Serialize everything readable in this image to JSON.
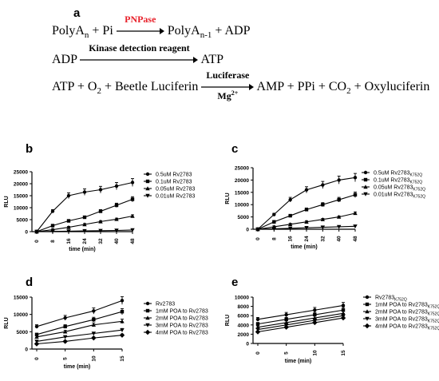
{
  "panel_labels": {
    "a": "a",
    "b": "b",
    "c": "c",
    "d": "d",
    "e": "e"
  },
  "reactions": [
    {
      "left": "PolyA",
      "left_sub": "n",
      "left_rest": " + Pi",
      "enzyme": "PNPase",
      "enzyme_color": "#e8202a",
      "right": "PolyA",
      "right_sub": "n-1",
      "right_rest": " + ADP"
    },
    {
      "left": "ADP",
      "enzyme": "Kinase detection reagent",
      "right": "ATP"
    },
    {
      "left": "ATP + O",
      "left_sub": "2",
      "left_rest": " + Beetle Luciferin",
      "enzyme": "Luciferase",
      "cofactor": "Mg",
      "cofactor_sup": "2+",
      "right": "AMP + PPi + CO",
      "right_sub": "2",
      "right_rest": " + Oxyluciferin"
    }
  ],
  "chart_data": [
    {
      "panel": "b",
      "type": "line",
      "xlabel": "time (min)",
      "ylabel": "RLU",
      "x": [
        0,
        8,
        16,
        24,
        32,
        40,
        48
      ],
      "ylim": [
        0,
        25000
      ],
      "yticks": [
        0,
        5000,
        10000,
        15000,
        20000,
        25000
      ],
      "series": [
        {
          "name": "0.5uM Rv2783",
          "marker": "circle",
          "values": [
            0,
            8500,
            15000,
            16500,
            17500,
            19000,
            20500
          ]
        },
        {
          "name": "0.1uM Rv2783",
          "marker": "square",
          "values": [
            0,
            2500,
            4500,
            6000,
            8500,
            11000,
            13500
          ]
        },
        {
          "name": "0.05uM Rv2783",
          "marker": "triangle-up",
          "values": [
            0,
            800,
            1800,
            3000,
            4200,
            5200,
            6500
          ]
        },
        {
          "name": "0.01uM Rv2783",
          "marker": "triangle-down",
          "values": [
            0,
            100,
            200,
            300,
            400,
            500,
            700
          ]
        }
      ]
    },
    {
      "panel": "c",
      "type": "line",
      "xlabel": "time (min)",
      "ylabel": "RLU",
      "x": [
        0,
        8,
        16,
        24,
        32,
        40,
        48
      ],
      "ylim": [
        0,
        25000
      ],
      "yticks": [
        0,
        5000,
        10000,
        15000,
        20000,
        25000
      ],
      "series": [
        {
          "name": "0.5uM Rv2783",
          "name_sub": "K752Q",
          "marker": "circle",
          "values": [
            0,
            6000,
            12000,
            16000,
            18000,
            20000,
            21000
          ]
        },
        {
          "name": "0.1uM Rv2783",
          "name_sub": "K752Q",
          "marker": "square",
          "values": [
            0,
            3000,
            5500,
            8000,
            10000,
            12000,
            14000
          ]
        },
        {
          "name": "0.05uM Rv2783",
          "name_sub": "K752Q",
          "marker": "triangle-up",
          "values": [
            0,
            1000,
            2000,
            3000,
            4000,
            5000,
            6500
          ]
        },
        {
          "name": "0.01uM Rv2783",
          "name_sub": "K752Q",
          "marker": "triangle-down",
          "values": [
            0,
            200,
            400,
            600,
            800,
            1000,
            1200
          ]
        }
      ]
    },
    {
      "panel": "d",
      "type": "line",
      "xlabel": "time (min)",
      "ylabel": "RLU",
      "x": [
        0,
        5,
        10,
        15
      ],
      "ylim": [
        0,
        15000
      ],
      "yticks": [
        0,
        5000,
        10000,
        15000
      ],
      "series": [
        {
          "name": "Rv2783",
          "marker": "circle",
          "values": [
            6500,
            9000,
            11000,
            14000
          ]
        },
        {
          "name": "1mM POA to Rv2783",
          "marker": "square",
          "values": [
            4200,
            6500,
            8500,
            10800
          ]
        },
        {
          "name": "2mM POA to Rv2783",
          "marker": "triangle-up",
          "values": [
            3500,
            5000,
            7000,
            8000
          ]
        },
        {
          "name": "3mM POA to Rv2783",
          "marker": "triangle-down",
          "values": [
            2200,
            3500,
            4500,
            5500
          ]
        },
        {
          "name": "4mM POA to Rv2783",
          "marker": "diamond",
          "values": [
            1500,
            2200,
            3200,
            4000
          ]
        }
      ]
    },
    {
      "panel": "e",
      "type": "line",
      "xlabel": "time (min)",
      "ylabel": "RLU",
      "x": [
        0,
        5,
        10,
        15
      ],
      "ylim": [
        0,
        10000
      ],
      "yticks": [
        0,
        2000,
        4000,
        6000,
        8000,
        10000
      ],
      "series": [
        {
          "name": "Rv2783",
          "name_sub": "K752Q",
          "marker": "circle",
          "values": [
            5200,
            6200,
            7200,
            8200
          ]
        },
        {
          "name": "1mM POA to Rv2783",
          "name_sub": "K752Q",
          "marker": "square",
          "values": [
            4200,
            5200,
            6200,
            7200
          ]
        },
        {
          "name": "2mM POA to Rv2783",
          "name_sub": "K752Q",
          "marker": "triangle-up",
          "values": [
            3500,
            4500,
            5500,
            6500
          ]
        },
        {
          "name": "3mM POA to Rv2783",
          "name_sub": "K752Q",
          "marker": "triangle-down",
          "values": [
            3000,
            4000,
            5000,
            6000
          ]
        },
        {
          "name": "4mM POA to Rv2783",
          "name_sub": "K752Q",
          "marker": "diamond",
          "values": [
            2500,
            3500,
            4500,
            5500
          ]
        }
      ]
    }
  ]
}
